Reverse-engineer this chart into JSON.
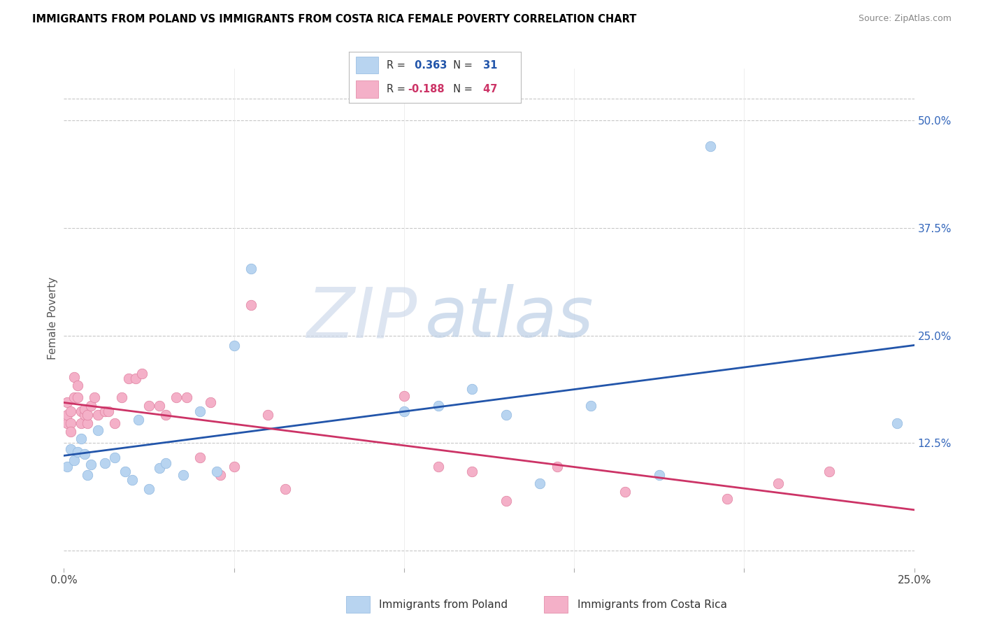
{
  "title": "IMMIGRANTS FROM POLAND VS IMMIGRANTS FROM COSTA RICA FEMALE POVERTY CORRELATION CHART",
  "source": "Source: ZipAtlas.com",
  "ylabel": "Female Poverty",
  "xlim": [
    0.0,
    0.25
  ],
  "ylim": [
    -0.02,
    0.56
  ],
  "poland_R": 0.363,
  "poland_N": 31,
  "costarica_R": -0.188,
  "costarica_N": 47,
  "poland_color": "#b8d4f0",
  "poland_edge_color": "#90b8e0",
  "poland_line_color": "#2255aa",
  "costarica_color": "#f4b0c8",
  "costarica_edge_color": "#e080a0",
  "costarica_line_color": "#cc3366",
  "watermark_color": "#ccd8ea",
  "grid_color": "#c8c8c8",
  "ytick_color": "#3366bb",
  "ytick_positions": [
    0.0,
    0.125,
    0.25,
    0.375,
    0.5
  ],
  "ytick_labels": [
    "",
    "12.5%",
    "25.0%",
    "37.5%",
    "50.0%"
  ],
  "xtick_positions": [
    0.0,
    0.05,
    0.1,
    0.15,
    0.2,
    0.25
  ],
  "xtick_labels": [
    "0.0%",
    "",
    "",
    "",
    "",
    "25.0%"
  ],
  "poland_x": [
    0.001,
    0.002,
    0.003,
    0.004,
    0.005,
    0.006,
    0.007,
    0.008,
    0.01,
    0.012,
    0.015,
    0.018,
    0.02,
    0.022,
    0.025,
    0.028,
    0.03,
    0.035,
    0.04,
    0.045,
    0.05,
    0.055,
    0.1,
    0.11,
    0.12,
    0.13,
    0.14,
    0.155,
    0.175,
    0.19,
    0.245
  ],
  "poland_y": [
    0.098,
    0.118,
    0.105,
    0.115,
    0.13,
    0.112,
    0.088,
    0.1,
    0.14,
    0.102,
    0.108,
    0.092,
    0.082,
    0.152,
    0.072,
    0.096,
    0.102,
    0.088,
    0.162,
    0.092,
    0.238,
    0.328,
    0.162,
    0.168,
    0.188,
    0.158,
    0.078,
    0.168,
    0.088,
    0.47,
    0.148
  ],
  "costarica_x": [
    0.001,
    0.001,
    0.001,
    0.002,
    0.002,
    0.002,
    0.003,
    0.003,
    0.004,
    0.004,
    0.005,
    0.005,
    0.006,
    0.006,
    0.007,
    0.007,
    0.008,
    0.009,
    0.01,
    0.012,
    0.013,
    0.015,
    0.017,
    0.019,
    0.021,
    0.023,
    0.025,
    0.028,
    0.03,
    0.033,
    0.036,
    0.04,
    0.043,
    0.046,
    0.05,
    0.055,
    0.06,
    0.065,
    0.1,
    0.11,
    0.12,
    0.13,
    0.145,
    0.165,
    0.195,
    0.21,
    0.225
  ],
  "costarica_y": [
    0.148,
    0.158,
    0.172,
    0.148,
    0.138,
    0.162,
    0.202,
    0.178,
    0.192,
    0.178,
    0.162,
    0.148,
    0.158,
    0.164,
    0.148,
    0.158,
    0.168,
    0.178,
    0.158,
    0.162,
    0.162,
    0.148,
    0.178,
    0.2,
    0.2,
    0.206,
    0.168,
    0.168,
    0.158,
    0.178,
    0.178,
    0.108,
    0.172,
    0.088,
    0.098,
    0.285,
    0.158,
    0.072,
    0.18,
    0.098,
    0.092,
    0.058,
    0.098,
    0.068,
    0.06,
    0.078,
    0.092
  ]
}
